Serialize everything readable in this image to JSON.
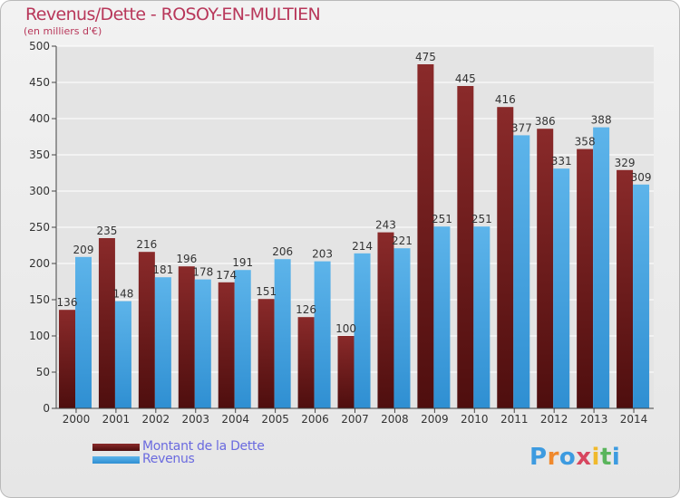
{
  "title": "Revenus/Dette - ROSOY-EN-MULTIEN",
  "subtitle": "(en milliers d'€)",
  "brand": {
    "letters": [
      "P",
      "r",
      "o",
      "x",
      "i",
      "t",
      "i"
    ],
    "letter_colors": [
      "#3d9be0",
      "#f0892c",
      "#3d9be0",
      "#d7465f",
      "#f0b92c",
      "#5ab55c",
      "#3d9be0"
    ]
  },
  "legend": {
    "dette_label": "Montant de la Dette",
    "revenus_label": "Revenus"
  },
  "colors": {
    "dette_top": "#8a2a2a",
    "dette_bottom": "#4e0e0e",
    "revenus_top": "#5db4ea",
    "revenus_bottom": "#2f8fd2",
    "title": "#b8375a",
    "legend_text": "#6a6adf"
  },
  "chart_data": {
    "type": "bar",
    "title": "Revenus/Dette - ROSOY-EN-MULTIEN",
    "subtitle": "(en milliers d'€)",
    "categories": [
      "2000",
      "2001",
      "2002",
      "2003",
      "2004",
      "2005",
      "2006",
      "2007",
      "2008",
      "2009",
      "2010",
      "2011",
      "2012",
      "2013",
      "2014"
    ],
    "series": [
      {
        "name": "Montant de la Dette",
        "values": [
          136,
          235,
          216,
          196,
          174,
          151,
          126,
          100,
          243,
          475,
          445,
          416,
          386,
          358,
          329
        ]
      },
      {
        "name": "Revenus",
        "values": [
          209,
          148,
          181,
          178,
          191,
          206,
          203,
          214,
          221,
          251,
          251,
          377,
          331,
          388,
          309
        ]
      }
    ],
    "yticks": [
      "0",
      "50",
      "100",
      "150",
      "200",
      "250",
      "300",
      "350",
      "400",
      "450",
      "500"
    ],
    "ylim": [
      0,
      500
    ],
    "grid": true,
    "legend_position": "bottom-left"
  }
}
